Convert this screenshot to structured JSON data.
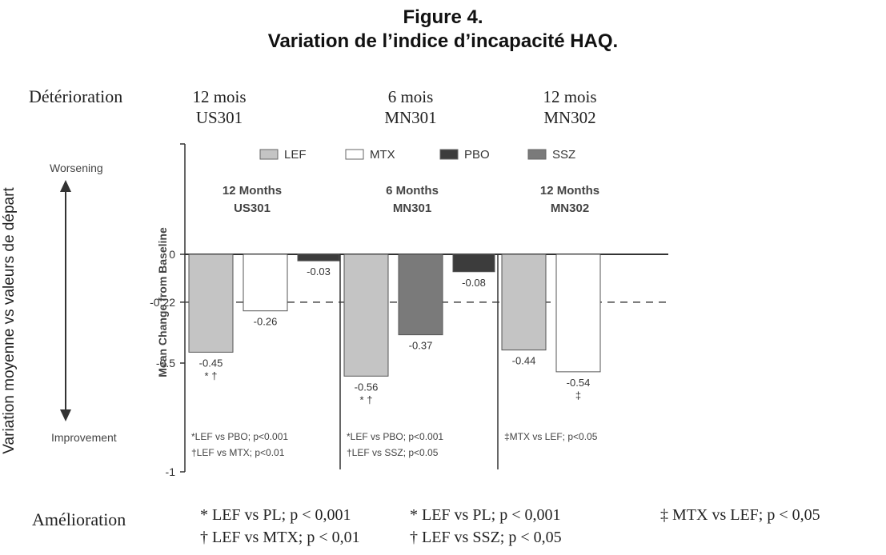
{
  "title": {
    "line1": "Figure 4.",
    "line2": "Variation de l’indice d’incapacité HAQ."
  },
  "outer": {
    "top_label": "Détérioration",
    "bottom_label": "Amélioration",
    "y_axis_title": "Variation moyenne vs valeurs de départ",
    "studies": [
      {
        "period": "12 mois",
        "code": "US301"
      },
      {
        "period": "6 mois",
        "code": "MN301"
      },
      {
        "period": "12 mois",
        "code": "MN302"
      }
    ],
    "footnotes": [
      {
        "line1": "* LEF vs PL; p < 0,001",
        "line2": "† LEF vs MTX; p < 0,01"
      },
      {
        "line1": "* LEF vs PL; p < 0,001",
        "line2": "† LEF vs SSZ; p < 0,05"
      },
      {
        "line1": "‡ MTX vs LEF; p < 0,05",
        "line2": ""
      }
    ]
  },
  "chart_data": {
    "type": "bar",
    "ylabel": "Mean Change from Baseline",
    "ylim": [
      -1,
      0.3
    ],
    "y_ticks": [
      {
        "value": 0,
        "label": "0"
      },
      {
        "value": -0.22,
        "label": "-0.22"
      },
      {
        "value": -0.5,
        "label": "-0.5"
      },
      {
        "value": -1,
        "label": "-1"
      }
    ],
    "reference_line": -0.22,
    "worsening_label": "Worsening",
    "improvement_label": "Improvement",
    "legend": [
      {
        "name": "LEF",
        "color": "#c4c4c4"
      },
      {
        "name": "MTX",
        "color": "#ffffff"
      },
      {
        "name": "PBO",
        "color": "#3c3c3c"
      },
      {
        "name": "SSZ",
        "color": "#7a7a7a"
      }
    ],
    "groups": [
      {
        "line1": "12 Months",
        "line2": "US301",
        "bars": [
          {
            "series": "LEF",
            "value": -0.45,
            "label": "-0.45",
            "sig": "* †"
          },
          {
            "series": "MTX",
            "value": -0.26,
            "label": "-0.26",
            "sig": ""
          },
          {
            "series": "PBO",
            "value": -0.03,
            "label": "-0.03",
            "sig": ""
          }
        ],
        "notes": [
          "*LEF vs PBO; p<0.001",
          "†LEF vs MTX; p<0.01"
        ]
      },
      {
        "line1": "6 Months",
        "line2": "MN301",
        "bars": [
          {
            "series": "LEF",
            "value": -0.56,
            "label": "-0.56",
            "sig": "* †"
          },
          {
            "series": "SSZ",
            "value": -0.37,
            "label": "-0.37",
            "sig": ""
          },
          {
            "series": "PBO",
            "value": -0.08,
            "label": "-0.08",
            "sig": ""
          }
        ],
        "notes": [
          "*LEF vs PBO; p<0.001",
          "†LEF vs SSZ; p<0.05"
        ]
      },
      {
        "line1": "12 Months",
        "line2": "MN302",
        "bars": [
          {
            "series": "LEF",
            "value": -0.44,
            "label": "-0.44",
            "sig": ""
          },
          {
            "series": "MTX",
            "value": -0.54,
            "label": "-0.54",
            "sig": "‡"
          }
        ],
        "notes": [
          "‡MTX vs LEF; p<0.05"
        ]
      }
    ]
  }
}
